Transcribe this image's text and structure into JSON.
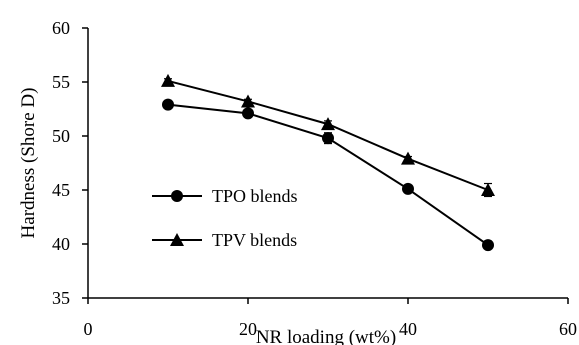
{
  "chart_data": {
    "type": "line",
    "title": "",
    "xlabel": "NR loading (wt%)",
    "ylabel": "Hardness (Shore D)",
    "xlim": [
      0,
      60
    ],
    "ylim": [
      35,
      60
    ],
    "xticks": [
      0,
      20,
      40,
      60
    ],
    "yticks": [
      35,
      40,
      45,
      50,
      55,
      60
    ],
    "x_tick_labels": [
      "0",
      "20",
      "40",
      "60"
    ],
    "y_tick_labels": [
      "35",
      "40",
      "45",
      "50",
      "55",
      "60"
    ],
    "grid": false,
    "legend_placement": "center-left",
    "series": [
      {
        "name": "TPO blends",
        "marker": "circle",
        "color": "#000000",
        "x": [
          10,
          20,
          30,
          40,
          50
        ],
        "y": [
          52.9,
          52.1,
          49.8,
          45.1,
          39.9
        ],
        "err": [
          0.2,
          0.3,
          0.5,
          0.2,
          0.2
        ]
      },
      {
        "name": "TPV blends",
        "marker": "triangle",
        "color": "#000000",
        "x": [
          10,
          20,
          30,
          40,
          50
        ],
        "y": [
          55.1,
          53.2,
          51.1,
          47.9,
          45.0
        ],
        "err": [
          0.2,
          0.2,
          0.3,
          0.2,
          0.6
        ]
      }
    ]
  }
}
